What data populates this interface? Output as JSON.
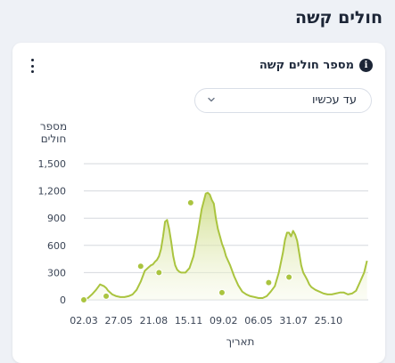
{
  "page": {
    "title": "חולים קשה"
  },
  "card": {
    "title": "מספר חולים קשה",
    "info_icon": "info-icon",
    "menu_icon": "vertical-dots-icon",
    "dropdown": {
      "selected": "עד עכשיו",
      "icon": "chevron-down-icon"
    }
  },
  "colors": {
    "line": "#aac43f",
    "fill_top": "#c9d97a",
    "fill_bottom": "#f4f7e2",
    "grid": "#d5d8de",
    "text": "#3b4556"
  },
  "chart_data": {
    "type": "area",
    "ylabel_lines": [
      "מספר",
      "חולים"
    ],
    "xlabel": "תאריך",
    "ylim": [
      0,
      1500
    ],
    "yticks": [
      0,
      300,
      600,
      900,
      1200,
      1500
    ],
    "ytick_labels": [
      "0",
      "300",
      "600",
      "900",
      "1,200",
      "1,500"
    ],
    "x_tick_labels": [
      "02.03",
      "27.05",
      "21.08",
      "15.11",
      "09.02",
      "06.05",
      "31.07",
      "25.10"
    ],
    "x_range": [
      0,
      700
    ],
    "x_ticks": [
      0,
      86,
      172,
      258,
      344,
      430,
      516,
      602
    ],
    "grid": true,
    "series": [
      {
        "x": [
          0,
          10,
          20,
          30,
          40,
          50,
          55,
          60,
          70,
          80,
          90,
          100,
          110,
          120,
          130,
          140,
          150,
          160,
          165,
          170,
          175,
          180,
          185,
          190,
          195,
          200,
          205,
          210,
          215,
          220,
          225,
          230,
          235,
          240,
          250,
          260,
          270,
          280,
          290,
          300,
          305,
          310,
          315,
          320,
          325,
          330,
          335,
          340,
          345,
          350,
          360,
          370,
          380,
          390,
          400,
          410,
          420,
          430,
          440,
          450,
          460,
          470,
          480,
          490,
          495,
          500,
          505,
          510,
          515,
          520,
          525,
          530,
          535,
          540,
          545,
          550,
          555,
          560,
          570,
          580,
          590,
          600,
          610,
          620,
          630,
          640,
          650,
          660,
          670,
          680,
          690,
          697
        ],
        "values": [
          0,
          20,
          60,
          110,
          170,
          150,
          130,
          100,
          60,
          40,
          30,
          30,
          40,
          60,
          110,
          200,
          320,
          360,
          380,
          390,
          420,
          440,
          480,
          560,
          700,
          860,
          880,
          780,
          640,
          480,
          380,
          330,
          310,
          300,
          300,
          350,
          480,
          720,
          1000,
          1170,
          1180,
          1160,
          1100,
          1060,
          900,
          780,
          700,
          620,
          560,
          480,
          380,
          260,
          160,
          90,
          60,
          40,
          30,
          20,
          20,
          40,
          90,
          150,
          300,
          520,
          660,
          740,
          740,
          700,
          760,
          720,
          650,
          520,
          380,
          300,
          260,
          220,
          170,
          140,
          110,
          90,
          70,
          60,
          60,
          70,
          80,
          80,
          60,
          70,
          100,
          200,
          300,
          430
        ]
      }
    ],
    "markers": [
      {
        "x": 0,
        "y": 0
      },
      {
        "x": 55,
        "y": 40
      },
      {
        "x": 140,
        "y": 370
      },
      {
        "x": 185,
        "y": 300
      },
      {
        "x": 263,
        "y": 1070
      },
      {
        "x": 340,
        "y": 80
      },
      {
        "x": 455,
        "y": 190
      },
      {
        "x": 505,
        "y": 250
      }
    ]
  }
}
